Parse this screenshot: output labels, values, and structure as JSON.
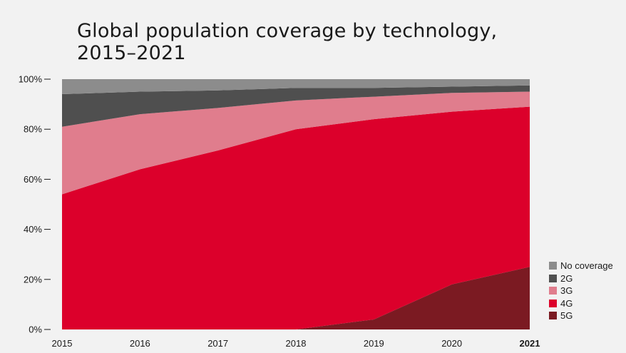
{
  "page": {
    "title_line1": "Global population coverage by technology,",
    "title_line2": "2015–2021"
  },
  "chart_data": {
    "type": "area",
    "stacked": true,
    "categories": [
      "2015",
      "2016",
      "2017",
      "2018",
      "2019",
      "2020",
      "2021"
    ],
    "highlight_category": "2021",
    "y_ticks": [
      "0%",
      "20%",
      "40%",
      "60%",
      "80%",
      "100%"
    ],
    "ylim": [
      0,
      100
    ],
    "series": [
      {
        "name": "5G",
        "color": "#7b1a22",
        "values": [
          0,
          0,
          0,
          0,
          4,
          18,
          25
        ]
      },
      {
        "name": "4G",
        "color": "#dc002b",
        "values": [
          54,
          64,
          71.5,
          80,
          80,
          69,
          64
        ]
      },
      {
        "name": "3G",
        "color": "#e07d8d",
        "values": [
          27,
          22,
          17,
          11.5,
          9,
          7.5,
          6
        ]
      },
      {
        "name": "2G",
        "color": "#4f4f4f",
        "values": [
          13,
          9,
          7,
          5,
          3.5,
          2.5,
          2.5
        ]
      },
      {
        "name": "No coverage",
        "color": "#8c8c8c",
        "values": [
          6,
          5,
          4.5,
          3.5,
          3.5,
          3,
          2.5
        ]
      }
    ],
    "legend": [
      "No coverage",
      "2G",
      "3G",
      "4G",
      "5G"
    ],
    "legend_position": "bottom-right"
  }
}
